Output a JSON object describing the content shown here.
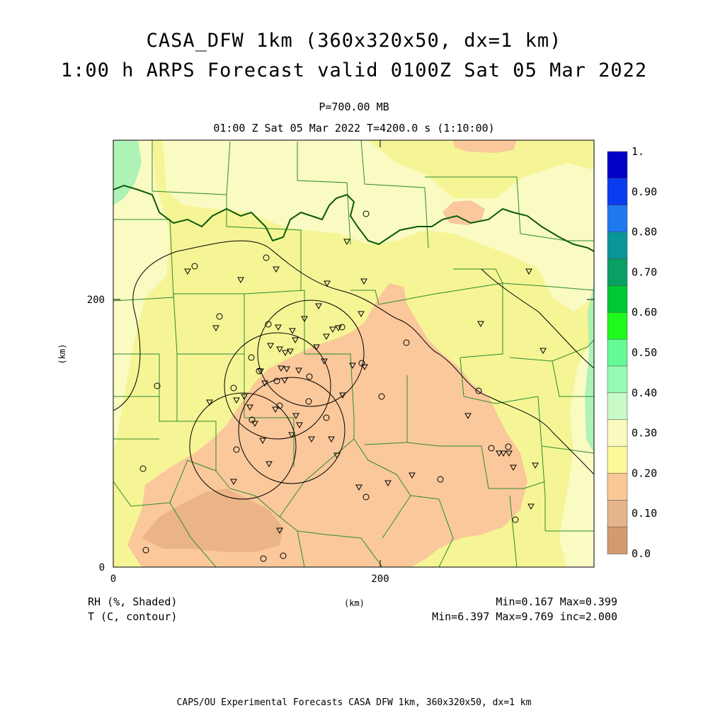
{
  "header": {
    "title_line1": "CASA_DFW 1km (360x320x50, dx=1 km)",
    "title_line2": "1:00 h ARPS Forecast valid 0100Z Sat 05 Mar 2022",
    "level": "P=700.00 MB",
    "time_info": "01:00 Z Sat 05 Mar 2022   T=4200.0 s (1:10:00)"
  },
  "axes": {
    "x_label": "(km)",
    "y_label": "(km)",
    "x_ticks": [
      "0",
      "200"
    ],
    "y_ticks": [
      "0",
      "200"
    ],
    "x_range": [
      0,
      360
    ],
    "y_range": [
      0,
      320
    ]
  },
  "colorbar": {
    "labels": [
      "1.",
      "0.90",
      "0.80",
      "0.70",
      "0.60",
      "0.50",
      "0.40",
      "0.30",
      "0.20",
      "0.10",
      "0.0"
    ],
    "colors": [
      "#0000c8",
      "#0a3cf0",
      "#1e78f0",
      "#0a9696",
      "#0aa064",
      "#00c832",
      "#1efa1e",
      "#64fa96",
      "#96fab4",
      "#c8fac8",
      "#fafabe",
      "#fafa96",
      "#fac896",
      "#e6b48c",
      "#d29b6e"
    ]
  },
  "footer": {
    "field1": "RH (%, Shaded)",
    "field2": "T (C, contour)",
    "x_unit": "(km)",
    "rh_stats": "Min=0.167 Max=0.399",
    "t_stats": "Min=6.397 Max=9.769 inc=2.000",
    "credit": "CAPS/OU Experimental Forecasts  CASA DFW 1km, 360x320x50, dx=1 km"
  },
  "map": {
    "colors": {
      "base": "#f5f596",
      "light": "#fafac3",
      "orange": "#fac89b",
      "dark": "#ebb487",
      "green": "#a0f0b4",
      "counties": "#2d8c2d",
      "river": "#0a5a0a",
      "contour": "#000000"
    },
    "radar_rings_km": 40
  }
}
